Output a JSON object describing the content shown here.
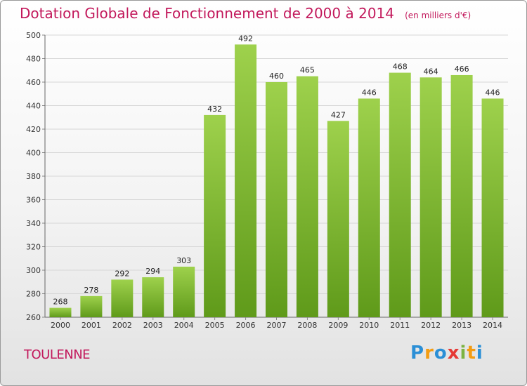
{
  "header": {
    "title": "Dotation Globale de Fonctionnement de 2000 à 2014",
    "unit": "(en milliers d'€)"
  },
  "footer": {
    "town": "TOULENNE",
    "logo_letters": [
      "P",
      "r",
      "o",
      "x",
      "i",
      "t",
      "i"
    ],
    "logo_colors": [
      "#2b8fd6",
      "#f39c12",
      "#2b8fd6",
      "#e53935",
      "#7cb342",
      "#f39c12",
      "#2b8fd6"
    ]
  },
  "colors": {
    "bar_light": "#9ed14c",
    "bar_dark": "#5f9a1a",
    "title": "#c2185b",
    "grid": "#d6d6d6"
  },
  "chart_data": {
    "type": "bar",
    "categories": [
      "2000",
      "2001",
      "2002",
      "2003",
      "2004",
      "2005",
      "2006",
      "2007",
      "2008",
      "2009",
      "2010",
      "2011",
      "2012",
      "2013",
      "2014"
    ],
    "values": [
      268,
      278,
      292,
      294,
      303,
      432,
      492,
      460,
      465,
      427,
      446,
      468,
      464,
      466,
      446
    ],
    "title": "Dotation Globale de Fonctionnement de 2000 à 2014",
    "ylim": [
      260,
      500
    ],
    "yticks": [
      260,
      280,
      300,
      320,
      340,
      360,
      380,
      400,
      420,
      440,
      460,
      480,
      500
    ],
    "grid": true,
    "data_labels": true
  }
}
